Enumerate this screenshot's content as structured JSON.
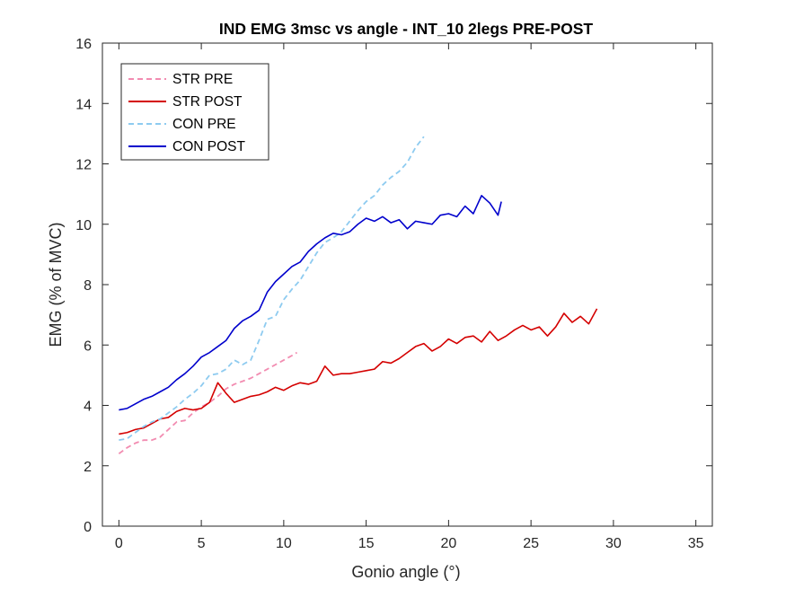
{
  "chart_data": {
    "type": "line",
    "title": "IND EMG 3msc vs angle - INT_10 2legs PRE-POST",
    "xlabel": "Gonio angle (°)",
    "ylabel": "EMG (% of MVC)",
    "xlim": [
      -1,
      36
    ],
    "ylim": [
      0,
      16
    ],
    "xticks": [
      "0",
      "5",
      "10",
      "15",
      "20",
      "25",
      "30",
      "35"
    ],
    "yticks": [
      "0",
      "2",
      "4",
      "6",
      "8",
      "10",
      "12",
      "14",
      "16"
    ],
    "grid": false,
    "legend": "top-left",
    "series": [
      {
        "name": "STR PRE",
        "color": "#f28cb1",
        "style": "dashed",
        "x": [
          0,
          0.5,
          1,
          1.5,
          2,
          2.5,
          3,
          3.5,
          4,
          4.5,
          5,
          5.5,
          6,
          6.5,
          7,
          7.5,
          8,
          8.5,
          9,
          9.5,
          10,
          10.5,
          10.8
        ],
        "y": [
          2.4,
          2.6,
          2.75,
          2.85,
          2.85,
          2.95,
          3.2,
          3.45,
          3.5,
          3.75,
          3.95,
          4.1,
          4.3,
          4.55,
          4.7,
          4.8,
          4.9,
          5.05,
          5.2,
          5.35,
          5.5,
          5.65,
          5.75
        ]
      },
      {
        "name": "STR POST",
        "color": "#d40000",
        "style": "solid",
        "x": [
          0,
          0.5,
          1,
          1.5,
          2,
          2.5,
          3,
          3.5,
          4,
          4.5,
          5,
          5.5,
          6,
          6.5,
          7,
          7.5,
          8,
          8.5,
          9,
          9.5,
          10,
          10.5,
          11,
          11.5,
          12,
          12.5,
          13,
          13.5,
          14,
          14.5,
          15,
          15.5,
          16,
          16.5,
          17,
          17.5,
          18,
          18.5,
          19,
          19.5,
          20,
          20.5,
          21,
          21.5,
          22,
          22.5,
          23,
          23.5,
          24,
          24.5,
          25,
          25.5,
          26,
          26.5,
          27,
          27.5,
          28,
          28.5,
          29
        ],
        "y": [
          3.05,
          3.1,
          3.2,
          3.25,
          3.4,
          3.55,
          3.6,
          3.8,
          3.9,
          3.85,
          3.9,
          4.1,
          4.75,
          4.4,
          4.1,
          4.2,
          4.3,
          4.35,
          4.45,
          4.6,
          4.5,
          4.65,
          4.75,
          4.7,
          4.8,
          5.3,
          5.0,
          5.05,
          5.05,
          5.1,
          5.15,
          5.2,
          5.45,
          5.4,
          5.55,
          5.75,
          5.95,
          6.05,
          5.8,
          5.95,
          6.2,
          6.05,
          6.25,
          6.3,
          6.1,
          6.45,
          6.15,
          6.3,
          6.5,
          6.65,
          6.5,
          6.6,
          6.3,
          6.6,
          7.05,
          6.75,
          6.95,
          6.7,
          7.2
        ]
      },
      {
        "name": "CON PRE",
        "color": "#8ecbf0",
        "style": "dashed",
        "x": [
          0,
          0.5,
          1,
          1.5,
          2,
          2.5,
          3,
          3.5,
          4,
          4.5,
          5,
          5.5,
          6,
          6.5,
          7,
          7.5,
          8,
          8.5,
          9,
          9.5,
          10,
          10.5,
          11,
          11.5,
          12,
          12.5,
          13,
          13.5,
          14,
          14.5,
          15,
          15.5,
          16,
          16.5,
          17,
          17.5,
          18,
          18.5
        ],
        "y": [
          2.85,
          2.9,
          3.1,
          3.3,
          3.45,
          3.55,
          3.75,
          3.95,
          4.2,
          4.4,
          4.65,
          5.0,
          5.05,
          5.2,
          5.5,
          5.35,
          5.5,
          6.15,
          6.85,
          6.95,
          7.5,
          7.85,
          8.15,
          8.6,
          9.05,
          9.4,
          9.55,
          9.75,
          10.1,
          10.45,
          10.75,
          10.95,
          11.3,
          11.55,
          11.75,
          12.05,
          12.55,
          12.9
        ]
      },
      {
        "name": "CON POST",
        "color": "#0000cc",
        "style": "solid",
        "x": [
          0,
          0.5,
          1,
          1.5,
          2,
          2.5,
          3,
          3.5,
          4,
          4.5,
          5,
          5.5,
          6,
          6.5,
          7,
          7.5,
          8,
          8.5,
          9,
          9.5,
          10,
          10.5,
          11,
          11.5,
          12,
          12.5,
          13,
          13.5,
          14,
          14.5,
          15,
          15.5,
          16,
          16.5,
          17,
          17.5,
          18,
          18.5,
          19,
          19.5,
          20,
          20.5,
          21,
          21.5,
          22,
          22.5,
          23,
          23.2
        ],
        "y": [
          3.85,
          3.9,
          4.05,
          4.2,
          4.3,
          4.45,
          4.6,
          4.85,
          5.05,
          5.3,
          5.6,
          5.75,
          5.95,
          6.15,
          6.55,
          6.8,
          6.95,
          7.15,
          7.75,
          8.1,
          8.35,
          8.6,
          8.75,
          9.1,
          9.35,
          9.55,
          9.7,
          9.65,
          9.75,
          10.0,
          10.2,
          10.1,
          10.25,
          10.05,
          10.15,
          9.85,
          10.1,
          10.05,
          10.0,
          10.3,
          10.35,
          10.25,
          10.6,
          10.35,
          10.95,
          10.7,
          10.3,
          10.75
        ]
      }
    ]
  }
}
